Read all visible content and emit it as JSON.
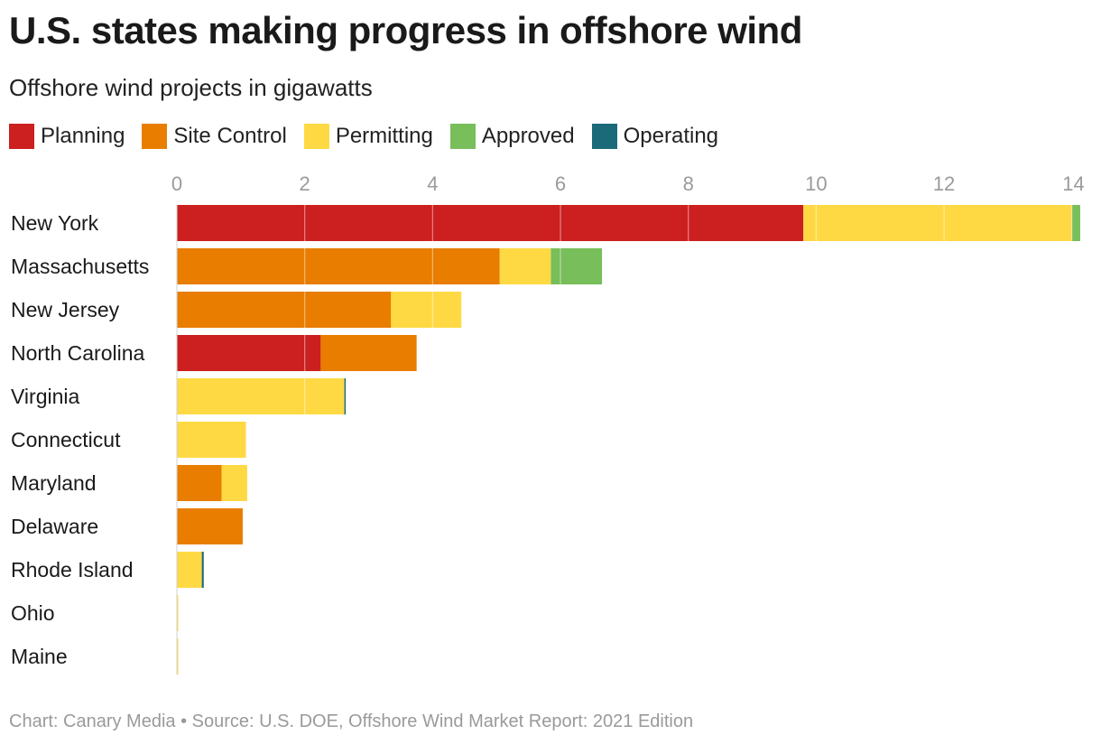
{
  "title": "U.S. states making progress in offshore wind",
  "subtitle": "Offshore wind projects in gigawatts",
  "footer": {
    "credit": "Chart: Canary Media",
    "separator": "•",
    "source": "Source: U.S. DOE, Offshore Wind Market Report: 2021 Edition"
  },
  "legend": [
    {
      "label": "Planning",
      "color": "#cc1f1f"
    },
    {
      "label": "Site Control",
      "color": "#e87d00"
    },
    {
      "label": "Permitting",
      "color": "#ffd944"
    },
    {
      "label": "Approved",
      "color": "#78be5a"
    },
    {
      "label": "Operating",
      "color": "#1a6a7a"
    }
  ],
  "chart_data": {
    "type": "bar",
    "orientation": "horizontal",
    "stacked": true,
    "title": "U.S. states making progress in offshore wind",
    "subtitle": "Offshore wind projects in gigawatts",
    "xlim": [
      0,
      14.3
    ],
    "x_ticks": [
      0,
      2,
      4,
      6,
      8,
      10,
      12,
      14
    ],
    "x_axis_position": "top",
    "grid": true,
    "legend_position": "top-left",
    "categories": [
      "New York",
      "Massachusetts",
      "New Jersey",
      "North Carolina",
      "Virginia",
      "Connecticut",
      "Maryland",
      "Delaware",
      "Rhode Island",
      "Ohio",
      "Maine"
    ],
    "series": [
      {
        "name": "Planning",
        "color": "#cc1f1f",
        "values": [
          9.8,
          0,
          0,
          2.25,
          0,
          0,
          0,
          0,
          0,
          0,
          0
        ]
      },
      {
        "name": "Site Control",
        "color": "#e87d00",
        "values": [
          0,
          5.05,
          3.35,
          1.5,
          0,
          0,
          0.7,
          1.03,
          0,
          0,
          0
        ]
      },
      {
        "name": "Permitting",
        "color": "#ffd944",
        "values": [
          4.2,
          0.8,
          1.1,
          0,
          2.62,
          1.08,
          0.4,
          0,
          0.39,
          0.02,
          0.01
        ]
      },
      {
        "name": "Approved",
        "color": "#78be5a",
        "values": [
          0.13,
          0.8,
          0,
          0,
          0,
          0,
          0,
          0,
          0,
          0,
          0
        ]
      },
      {
        "name": "Operating",
        "color": "#1a6a7a",
        "values": [
          0,
          0,
          0,
          0,
          0.012,
          0,
          0,
          0,
          0.03,
          0,
          0
        ]
      }
    ]
  }
}
